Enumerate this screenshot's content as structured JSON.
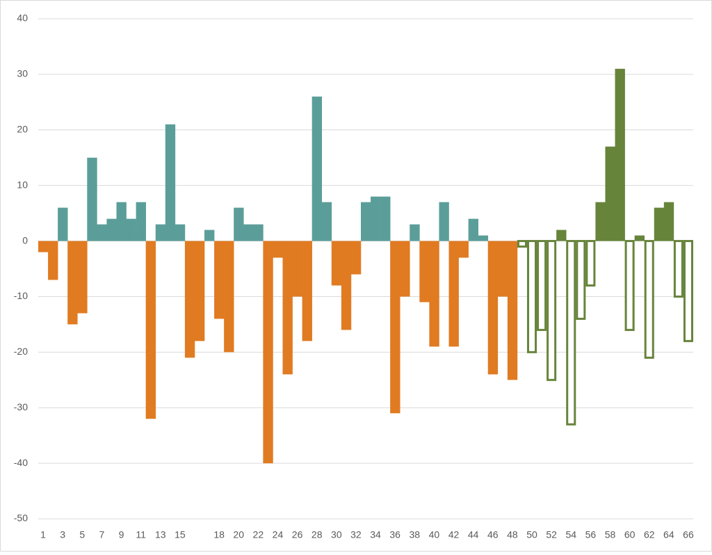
{
  "chart_data": {
    "type": "bar",
    "categories": [
      "1",
      null,
      "3",
      null,
      "5",
      null,
      "7",
      null,
      "9",
      null,
      "11",
      null,
      "13",
      null,
      "15",
      null,
      null,
      null,
      "18",
      null,
      "20",
      null,
      "22",
      null,
      "24",
      null,
      "26",
      null,
      "28",
      null,
      "30",
      null,
      "32",
      null,
      "34",
      null,
      "36",
      null,
      "38",
      null,
      "40",
      null,
      "42",
      null,
      "44",
      null,
      "46",
      null,
      "48",
      null,
      "50",
      null,
      "52",
      null,
      "54",
      null,
      "56",
      null,
      "58",
      null,
      "60",
      null,
      "62",
      null,
      "64",
      null,
      "66"
    ],
    "series": [
      {
        "color": "#5b9e99",
        "values": [
          null,
          null,
          6,
          null,
          null,
          15,
          3,
          4,
          7,
          4,
          7,
          null,
          3,
          21,
          3,
          null,
          null,
          2,
          null,
          null,
          6,
          3,
          3,
          null,
          null,
          null,
          null,
          null,
          26,
          7,
          null,
          null,
          null,
          7,
          8,
          8,
          null,
          null,
          3,
          null,
          null,
          7,
          null,
          null,
          4,
          1,
          null,
          null,
          null,
          null,
          null,
          null,
          null,
          null,
          null,
          null,
          null,
          null,
          null,
          null,
          null,
          null,
          null,
          null,
          null,
          null,
          null
        ]
      },
      {
        "color": "#e07b22",
        "values": [
          -2,
          -7,
          null,
          -15,
          -13,
          null,
          null,
          null,
          null,
          null,
          null,
          -32,
          null,
          null,
          null,
          -21,
          -18,
          null,
          -14,
          -20,
          null,
          null,
          null,
          -40,
          -3,
          -24,
          -10,
          -18,
          null,
          null,
          -8,
          -16,
          -6,
          null,
          null,
          null,
          -31,
          -10,
          null,
          -11,
          -19,
          null,
          -19,
          -3,
          null,
          null,
          -24,
          -10,
          -25,
          null,
          null,
          null,
          null,
          null,
          null,
          null,
          null,
          null,
          null,
          null,
          null,
          null,
          null,
          null,
          null,
          null,
          null
        ]
      },
      {
        "color": "#67843b",
        "values": [
          null,
          null,
          null,
          null,
          null,
          null,
          null,
          null,
          null,
          null,
          null,
          null,
          null,
          null,
          null,
          null,
          null,
          null,
          null,
          null,
          null,
          null,
          null,
          null,
          null,
          null,
          null,
          null,
          null,
          null,
          null,
          null,
          null,
          null,
          null,
          null,
          null,
          null,
          null,
          null,
          null,
          null,
          null,
          null,
          null,
          null,
          null,
          null,
          null,
          null,
          null,
          null,
          null,
          2,
          null,
          null,
          null,
          7,
          17,
          31,
          null,
          1,
          null,
          6,
          7,
          null,
          null
        ]
      },
      {
        "color": "#67843b",
        "outline": true,
        "values": [
          null,
          null,
          null,
          null,
          null,
          null,
          null,
          null,
          null,
          null,
          null,
          null,
          null,
          null,
          null,
          null,
          null,
          null,
          null,
          null,
          null,
          null,
          null,
          null,
          null,
          null,
          null,
          null,
          null,
          null,
          null,
          null,
          null,
          null,
          null,
          null,
          null,
          null,
          null,
          null,
          null,
          null,
          null,
          null,
          null,
          null,
          null,
          null,
          null,
          -1,
          -20,
          -16,
          -25,
          null,
          -33,
          -14,
          -8,
          null,
          null,
          null,
          -16,
          null,
          -21,
          null,
          null,
          -10,
          -18
        ]
      }
    ],
    "ylim": [
      -50,
      40
    ],
    "yticks": [
      -50,
      -40,
      -30,
      -20,
      -10,
      0,
      10,
      20,
      30,
      40
    ],
    "grid": true
  }
}
